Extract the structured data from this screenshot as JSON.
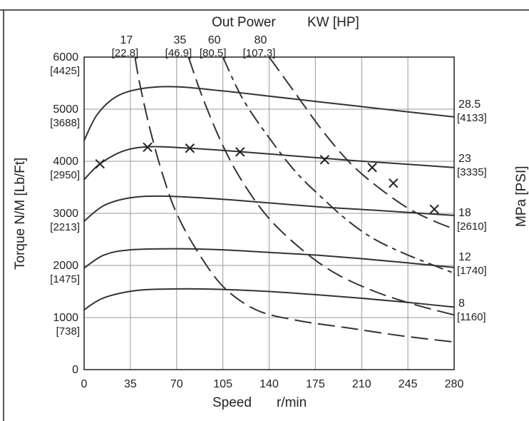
{
  "chart_data": {
    "type": "line",
    "top_title": "Out Power",
    "top_unit": "KW [HP]",
    "xlabel_main": "Speed",
    "xlabel_unit": "r/min",
    "ylabel_left": "Torque N/M [Lb/Ft]",
    "ylabel_right": "MPa [PSI]",
    "xlim": [
      0,
      280
    ],
    "ylim": [
      0,
      6000
    ],
    "x_ticks": [
      "0",
      "35",
      "70",
      "105",
      "140",
      "175",
      "210",
      "245",
      "280"
    ],
    "y_ticks": [
      {
        "value": 0,
        "label": "0",
        "sub": ""
      },
      {
        "value": 1000,
        "label": "1000",
        "sub": "[738]"
      },
      {
        "value": 2000,
        "label": "2000",
        "sub": "[1475]"
      },
      {
        "value": 3000,
        "label": "3000",
        "sub": "[2213]"
      },
      {
        "value": 4000,
        "label": "4000",
        "sub": "[2950]"
      },
      {
        "value": 5000,
        "label": "5000",
        "sub": "[3688]"
      },
      {
        "value": 6000,
        "label": "6000",
        "sub": "[4425]"
      }
    ],
    "grid": true,
    "pressure_series": [
      {
        "label": "28.5",
        "sub": "[4133]",
        "label_torque": 5080,
        "points": [
          [
            0,
            4400
          ],
          [
            10,
            4900
          ],
          [
            25,
            5250
          ],
          [
            45,
            5400
          ],
          [
            70,
            5430
          ],
          [
            105,
            5350
          ],
          [
            140,
            5250
          ],
          [
            175,
            5150
          ],
          [
            210,
            5050
          ],
          [
            245,
            4950
          ],
          [
            280,
            4850
          ]
        ]
      },
      {
        "label": "23",
        "sub": "[3335]",
        "label_torque": 4040,
        "points": [
          [
            0,
            3650
          ],
          [
            12,
            3950
          ],
          [
            30,
            4200
          ],
          [
            50,
            4280
          ],
          [
            80,
            4250
          ],
          [
            120,
            4180
          ],
          [
            160,
            4100
          ],
          [
            200,
            4020
          ],
          [
            240,
            3950
          ],
          [
            280,
            3880
          ]
        ]
      },
      {
        "label": "18",
        "sub": "[2610]",
        "label_torque": 3000,
        "points": [
          [
            0,
            2850
          ],
          [
            15,
            3150
          ],
          [
            35,
            3300
          ],
          [
            60,
            3330
          ],
          [
            100,
            3280
          ],
          [
            140,
            3200
          ],
          [
            180,
            3120
          ],
          [
            220,
            3060
          ],
          [
            250,
            3010
          ],
          [
            280,
            2960
          ]
        ]
      },
      {
        "label": "12",
        "sub": "[1740]",
        "label_torque": 2150,
        "points": [
          [
            0,
            1950
          ],
          [
            15,
            2200
          ],
          [
            35,
            2300
          ],
          [
            70,
            2320
          ],
          [
            105,
            2300
          ],
          [
            140,
            2250
          ],
          [
            175,
            2200
          ],
          [
            210,
            2130
          ],
          [
            245,
            2050
          ],
          [
            280,
            1960
          ]
        ]
      },
      {
        "label": "8",
        "sub": "[1160]",
        "label_torque": 1260,
        "points": [
          [
            0,
            1150
          ],
          [
            15,
            1380
          ],
          [
            40,
            1520
          ],
          [
            70,
            1550
          ],
          [
            105,
            1540
          ],
          [
            140,
            1500
          ],
          [
            175,
            1440
          ],
          [
            210,
            1370
          ],
          [
            245,
            1290
          ],
          [
            280,
            1200
          ]
        ]
      }
    ],
    "power_series": [
      {
        "label": "17",
        "sub": "[22.8]",
        "dash": "long",
        "points": [
          [
            38.5,
            6000
          ],
          [
            42,
            5500
          ],
          [
            50,
            4600
          ],
          [
            60,
            3700
          ],
          [
            70,
            3000
          ],
          [
            85,
            2300
          ],
          [
            105,
            1600
          ],
          [
            130,
            1150
          ],
          [
            160,
            950
          ],
          [
            200,
            800
          ],
          [
            240,
            650
          ],
          [
            280,
            530
          ]
        ]
      },
      {
        "label": "35",
        "sub": "[46.9]",
        "dash": "long",
        "points": [
          [
            79,
            6000
          ],
          [
            90,
            5200
          ],
          [
            105,
            4300
          ],
          [
            120,
            3600
          ],
          [
            140,
            2900
          ],
          [
            165,
            2300
          ],
          [
            190,
            1850
          ],
          [
            220,
            1500
          ],
          [
            250,
            1250
          ],
          [
            280,
            1050
          ]
        ]
      },
      {
        "label": "60",
        "sub": "[80.5]",
        "dash": "longshort",
        "points": [
          [
            105,
            6000
          ],
          [
            120,
            5200
          ],
          [
            140,
            4450
          ],
          [
            160,
            3800
          ],
          [
            180,
            3300
          ],
          [
            200,
            2850
          ],
          [
            220,
            2500
          ],
          [
            245,
            2200
          ],
          [
            280,
            1850
          ]
        ]
      },
      {
        "label": "80",
        "sub": "[107.3]",
        "dash": "long",
        "points": [
          [
            140,
            6000
          ],
          [
            160,
            5300
          ],
          [
            180,
            4600
          ],
          [
            200,
            4000
          ],
          [
            220,
            3550
          ],
          [
            245,
            3100
          ],
          [
            265,
            2850
          ],
          [
            280,
            2700
          ]
        ]
      }
    ],
    "markers": [
      [
        12,
        3950
      ],
      [
        48,
        4270
      ],
      [
        80,
        4250
      ],
      [
        118,
        4180
      ],
      [
        182,
        4030
      ],
      [
        218,
        3880
      ],
      [
        234,
        3580
      ],
      [
        265,
        3080
      ]
    ]
  }
}
